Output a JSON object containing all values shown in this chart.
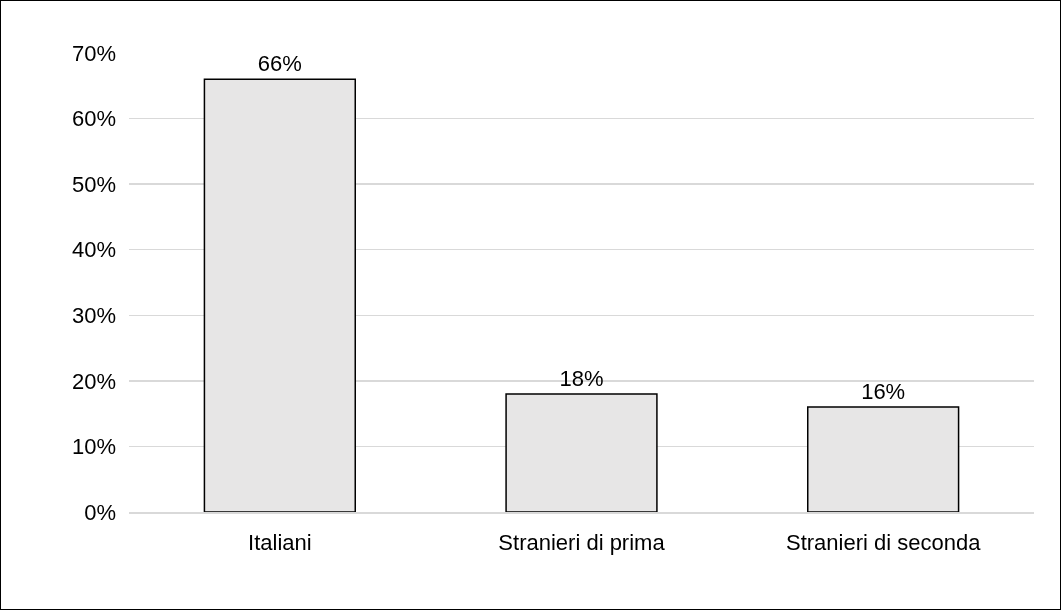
{
  "chart_data": {
    "type": "bar",
    "categories": [
      "Italiani",
      "Stranieri di prima",
      "Stranieri di seconda"
    ],
    "values": [
      66,
      18,
      16
    ],
    "color": "#e7e6e6",
    "value_labels": [
      "66%",
      "18%",
      "16%"
    ],
    "ylim": [
      0,
      70
    ],
    "yticks": [
      {
        "value": 0,
        "label": "0%"
      },
      {
        "value": 10,
        "label": "10%"
      },
      {
        "value": 20,
        "label": "20%"
      },
      {
        "value": 30,
        "label": "30%"
      },
      {
        "value": 40,
        "label": "40%"
      },
      {
        "value": 50,
        "label": "50%"
      },
      {
        "value": 60,
        "label": "60%"
      },
      {
        "value": 70,
        "label": "70%"
      }
    ],
    "grid": "y"
  }
}
